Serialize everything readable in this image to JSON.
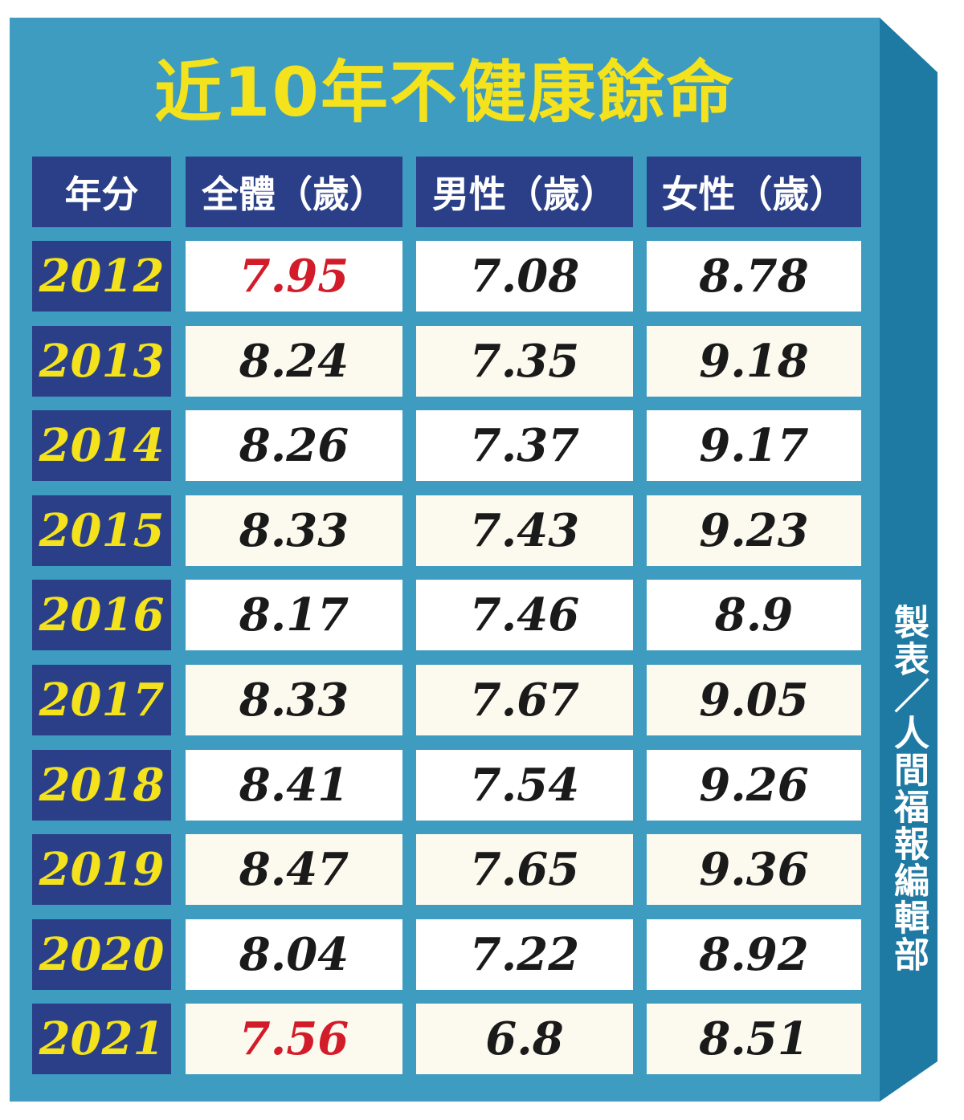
{
  "title": "近10年不健康餘命",
  "table": {
    "header": [
      "年分",
      "全體（歲）",
      "男性（歲）",
      "女性（歲）"
    ],
    "rows": [
      [
        "2012",
        "7.95",
        "7.08",
        "8.78"
      ],
      [
        "2013",
        "8.24",
        "7.35",
        "9.18"
      ],
      [
        "2014",
        "8.26",
        "7.37",
        "9.17"
      ],
      [
        "2015",
        "8.33",
        "7.43",
        "9.23"
      ],
      [
        "2016",
        "8.17",
        "7.46",
        "8.9"
      ],
      [
        "2017",
        "8.33",
        "7.67",
        "9.05"
      ],
      [
        "2018",
        "8.41",
        "7.54",
        "9.26"
      ],
      [
        "2019",
        "8.47",
        "7.65",
        "9.36"
      ],
      [
        "2020",
        "8.04",
        "7.22",
        "8.92"
      ],
      [
        "2021",
        "7.56",
        "6.8",
        "8.51"
      ]
    ]
  },
  "credit": "製表／人間福報編輯部"
}
